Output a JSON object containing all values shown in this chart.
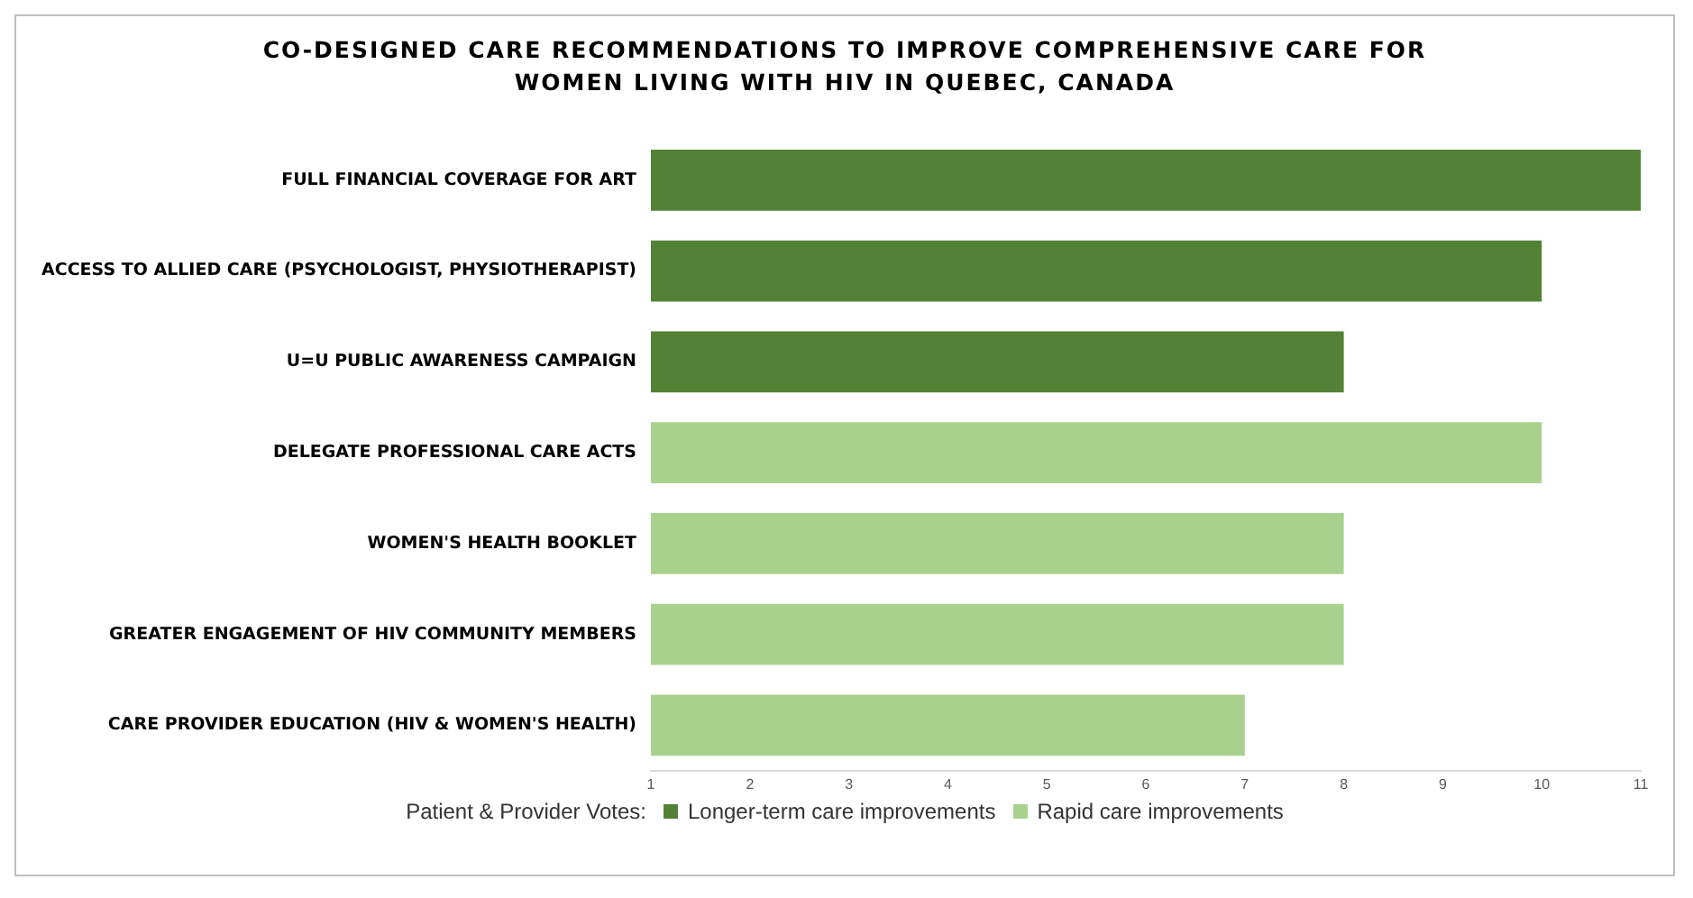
{
  "chart_data": {
    "type": "bar",
    "orientation": "horizontal",
    "stacked": true,
    "title": "CO-DESIGNED CARE RECOMMENDATIONS TO IMPROVE COMPREHENSIVE CARE FOR WOMEN LIVING WITH HIV IN QUEBEC, CANADA",
    "categories": [
      "FULL FINANCIAL COVERAGE FOR ART",
      "ACCESS TO ALLIED CARE (PSYCHOLOGIST, PHYSIOTHERAPIST)",
      "U=U PUBLIC AWARENESS CAMPAIGN",
      "DELEGATE PROFESSIONAL CARE ACTS",
      "WOMEN'S HEALTH BOOKLET",
      "GREATER ENGAGEMENT OF HIV COMMUNITY MEMBERS",
      "CARE PROVIDER EDUCATION (HIV & WOMEN'S HEALTH)"
    ],
    "series": [
      {
        "name": "Longer-term care improvements",
        "color": "#538135",
        "values": [
          11,
          10,
          8,
          null,
          null,
          null,
          null
        ]
      },
      {
        "name": "Rapid care improvements",
        "color": "#a9d18e",
        "values": [
          null,
          null,
          null,
          10,
          8,
          8,
          7
        ]
      }
    ],
    "xlim": [
      1,
      11
    ],
    "xticks": [
      1,
      2,
      3,
      4,
      5,
      6,
      7,
      8,
      9,
      10,
      11
    ],
    "grid": false,
    "legend": "bottom",
    "legend_title": "Patient &  Provider Votes:"
  }
}
